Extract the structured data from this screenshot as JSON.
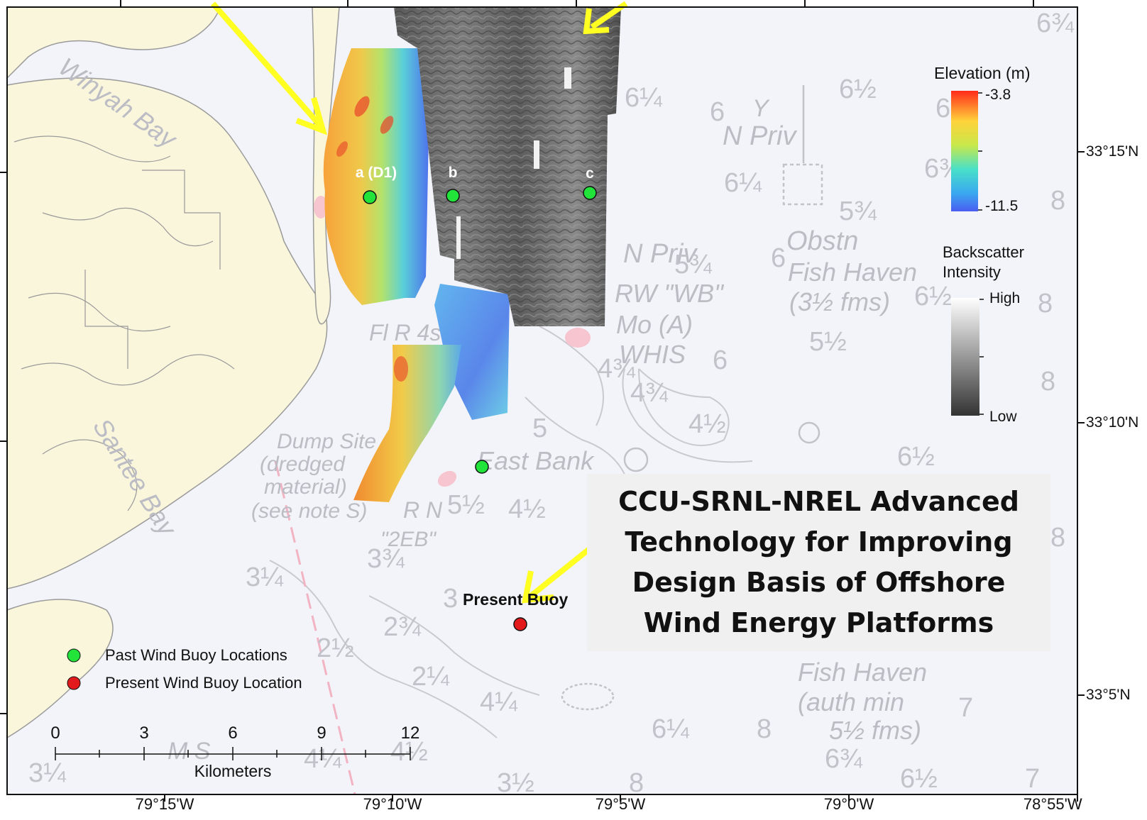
{
  "map": {
    "sites": [
      {
        "label": "a (D1)",
        "type": "past"
      },
      {
        "label": "b",
        "type": "past"
      },
      {
        "label": "c",
        "type": "past"
      },
      {
        "label": "",
        "type": "past"
      },
      {
        "label": "Present Buoy",
        "type": "present"
      }
    ],
    "chart_text": [
      "Winyah Bay",
      "Santee Bay",
      "Dump Site",
      "(dredged",
      "material)",
      "(see note S)",
      "East Bank",
      "N Priv",
      "RW \"WB\"",
      "Mo (A)",
      "WHIS",
      "Fl R 4s",
      "R N",
      "\"2EB\"",
      "Obstn",
      "Fish Haven",
      "(3½ fms)",
      "Y",
      "Fish Haven",
      "(auth min",
      "5½ fms)",
      "M S"
    ]
  },
  "colors": {
    "land": "#faf6dc",
    "water": "#f3f4f9",
    "past_buoy": "#22e33a",
    "present_buoy": "#e31a1c",
    "arrow": "#ffff22"
  },
  "elevation_legend": {
    "title": "Elevation (m)",
    "max": "-3.8",
    "min": "-11.5"
  },
  "backscatter_legend": {
    "title_line1": "Backscatter",
    "title_line2": "Intensity",
    "high": "High",
    "low": "Low"
  },
  "buoy_legend": {
    "past": "Past Wind Buoy Locations",
    "present": "Present Wind Buoy Location"
  },
  "scale_bar": {
    "ticks": [
      "0",
      "3",
      "6",
      "9",
      "12"
    ],
    "unit": "Kilometers"
  },
  "axes": {
    "lon": [
      "79°15'W",
      "79°10'W",
      "79°5'W",
      "79°0'W",
      "78°55'W"
    ],
    "lat": [
      "33°15'N",
      "33°10'N",
      "33°5'N"
    ]
  },
  "title": "CCU-SRNL-NREL Advanced Technology for Improving Design Basis of Offshore Wind Energy Platforms"
}
